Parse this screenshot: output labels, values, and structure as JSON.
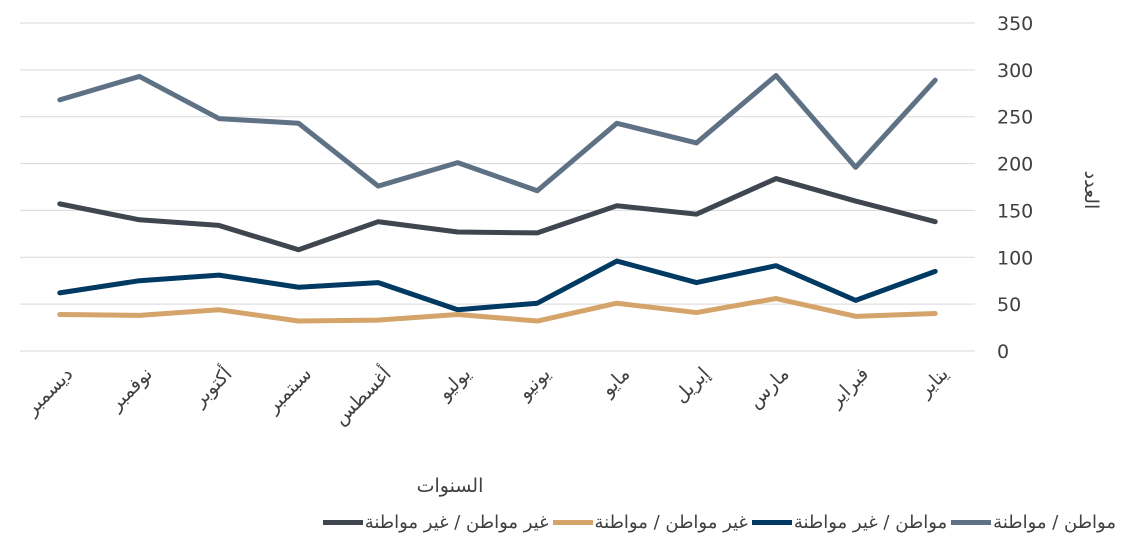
{
  "chart_data": {
    "type": "line",
    "x_label": "السنوات",
    "y_label": "العدد",
    "categories": [
      "يناير",
      "فبراير",
      "مارس",
      "إبريل",
      "مايو",
      "يونيو",
      "يوليو",
      "أغسطس",
      "سبتمبر",
      "أكتوبر",
      "نوفمبر",
      "ديسمبر"
    ],
    "x_direction": "rtl",
    "y_axis_side": "right",
    "legend": "bottom",
    "grid": true,
    "ylim": [
      0,
      350
    ],
    "yticks": [
      0,
      50,
      100,
      150,
      200,
      250,
      300,
      350
    ],
    "series": [
      {
        "name": "مواطن / مواطنة",
        "color": "#5f7185",
        "values": [
          289,
          196,
          294,
          222,
          243,
          171,
          201,
          176,
          243,
          248,
          293,
          268
        ]
      },
      {
        "name": "مواطن / غير مواطنة",
        "color": "#003a63",
        "values": [
          85,
          54,
          91,
          73,
          96,
          51,
          44,
          73,
          68,
          81,
          75,
          62
        ]
      },
      {
        "name": "غير مواطن / مواطنة",
        "color": "#d4a46a",
        "values": [
          40,
          37,
          56,
          41,
          51,
          32,
          39,
          33,
          32,
          44,
          38,
          39
        ]
      },
      {
        "name": "غير مواطن / غير مواطنة",
        "color": "#3f4650",
        "values": [
          138,
          160,
          184,
          146,
          155,
          126,
          127,
          138,
          108,
          134,
          140,
          157
        ]
      }
    ]
  }
}
